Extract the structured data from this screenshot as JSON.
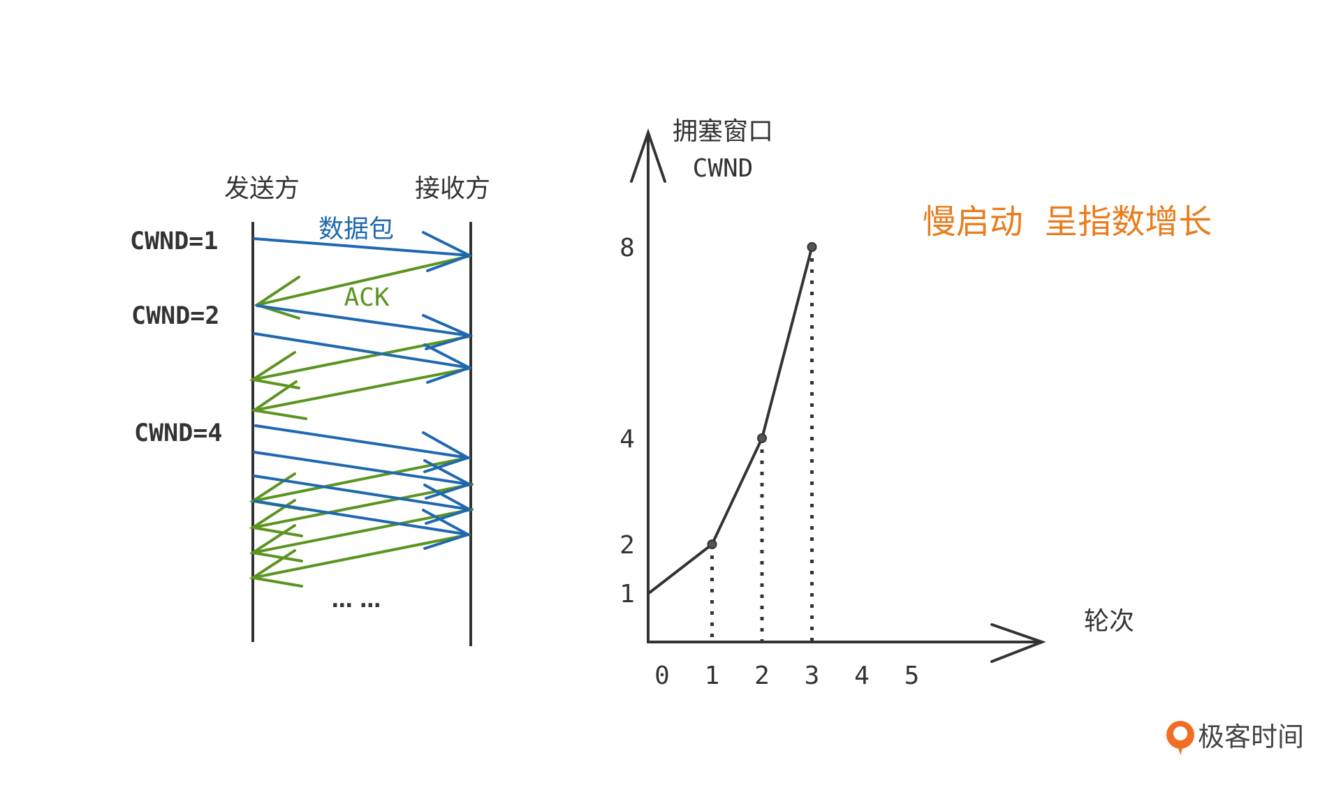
{
  "left_diagram": {
    "sender_label": "发送方",
    "receiver_label": "接收方",
    "packet_label": "数据包",
    "ack_label": "ACK",
    "cwnd_labels": [
      "CWND=1",
      "CWND=2",
      "CWND=4"
    ],
    "ellipsis": "… …"
  },
  "right_chart": {
    "y_title_line1": "拥塞窗口",
    "y_title_line2": "CWND",
    "x_title": "轮次",
    "headline": "慢启动  呈指数增长"
  },
  "chart_data": {
    "type": "line",
    "x": [
      0,
      1,
      2,
      3
    ],
    "y": [
      1,
      2,
      4,
      8
    ],
    "x_ticks": [
      "0",
      "1",
      "2",
      "3",
      "4",
      "5"
    ],
    "y_ticks": [
      "1",
      "2",
      "4",
      "8"
    ],
    "xlabel": "轮次",
    "ylabel": "拥塞窗口 CWND",
    "title": "慢启动  呈指数增长",
    "grid": false,
    "marked_points": [
      1,
      2,
      3
    ]
  },
  "brand": {
    "name": "极客时间"
  },
  "colors": {
    "packet_blue": "#1f68b0",
    "ack_green": "#5b9421",
    "axis_dark": "#333333",
    "headline_orange": "#e87d1e",
    "brand_orange": "#f06e24"
  }
}
